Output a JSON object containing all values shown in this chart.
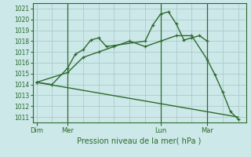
{
  "background_color": "#cce8e8",
  "grid_color": "#aacccc",
  "line_color": "#2d6a2d",
  "xlabel": "Pression niveau de la mer( hPa )",
  "ylim": [
    1010.5,
    1021.5
  ],
  "yticks": [
    1011,
    1012,
    1013,
    1014,
    1015,
    1016,
    1017,
    1018,
    1019,
    1020,
    1021
  ],
  "xtick_labels": [
    "Dim",
    "Mer",
    "Lun",
    "Mar"
  ],
  "xtick_positions": [
    0,
    4,
    16,
    22
  ],
  "xlim": [
    -0.5,
    27
  ],
  "series1_x": [
    0,
    2,
    4,
    5,
    6,
    7,
    8,
    9,
    14,
    15,
    16,
    17,
    18,
    19,
    20,
    21,
    22
  ],
  "series1_y": [
    1014.2,
    1014.0,
    1015.5,
    1016.8,
    1017.2,
    1018.1,
    1018.3,
    1017.5,
    1018.0,
    1019.5,
    1020.5,
    1020.7,
    1019.6,
    1018.1,
    1018.3,
    1018.5,
    1018.0
  ],
  "series2_x": [
    0,
    4,
    6,
    8,
    10,
    12,
    14,
    16,
    18,
    20,
    22,
    23,
    24,
    25,
    26
  ],
  "series2_y": [
    1014.2,
    1015.1,
    1016.5,
    1017.0,
    1017.5,
    1018.0,
    1017.5,
    1018.0,
    1018.5,
    1018.5,
    1016.3,
    1014.9,
    1013.3,
    1011.5,
    1010.8
  ],
  "series3_x": [
    0,
    26
  ],
  "series3_y": [
    1014.2,
    1011.0
  ],
  "vlines_x": [
    4,
    16,
    22
  ]
}
